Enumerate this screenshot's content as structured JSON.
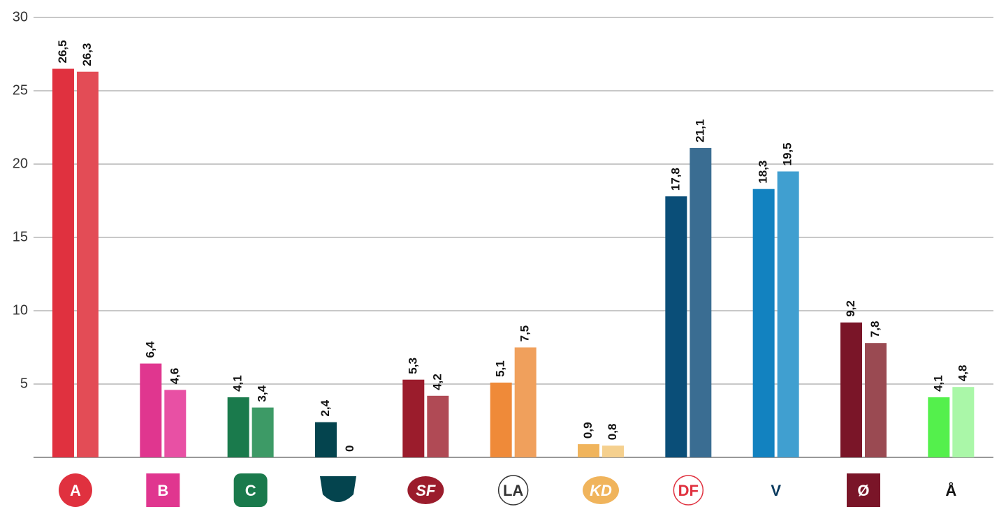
{
  "chart_data": {
    "type": "bar",
    "categories": [
      "A",
      "B",
      "C",
      null,
      "SF",
      "LA",
      "KD",
      "DF",
      "V",
      "Ø",
      "Å"
    ],
    "series": [
      {
        "colors": [
          "#e0313f",
          "#e0368f",
          "#1a7a4c",
          "#04444e",
          "#9b1c2c",
          "#ef8a39",
          "#f0b45c",
          "#0a4e78",
          "#1282c0",
          "#7a1528",
          "#54f04c"
        ],
        "values": [
          26.5,
          6.4,
          4.1,
          2.4,
          5.3,
          5.1,
          0.9,
          17.8,
          18.3,
          9.2,
          4.1
        ],
        "value_labels": [
          "26,5",
          "6,4",
          "4,1",
          "2,4",
          "5,3",
          "5,1",
          "0,9",
          "17,8",
          "18,3",
          "9,2",
          "4,1"
        ]
      },
      {
        "colors": [
          "#e34c56",
          "#e850a4",
          "#3d9a66",
          "#2d5f67",
          "#b04a55",
          "#f0a05c",
          "#f5d08e",
          "#3a6d92",
          "#409fd0",
          "#9a4a52",
          "#aaf7a8"
        ],
        "values": [
          26.3,
          4.6,
          3.4,
          0,
          4.2,
          7.5,
          0.8,
          21.1,
          19.5,
          7.8,
          4.8
        ],
        "value_labels": [
          "26,3",
          "4,6",
          "3,4",
          "0",
          "4,2",
          "7,5",
          "0,8",
          "21,1",
          "19,5",
          "7,8",
          "4,8"
        ]
      }
    ],
    "ylim": [
      0,
      30
    ],
    "yticks": [
      5,
      10,
      15,
      20,
      25,
      30
    ],
    "grid": true
  }
}
